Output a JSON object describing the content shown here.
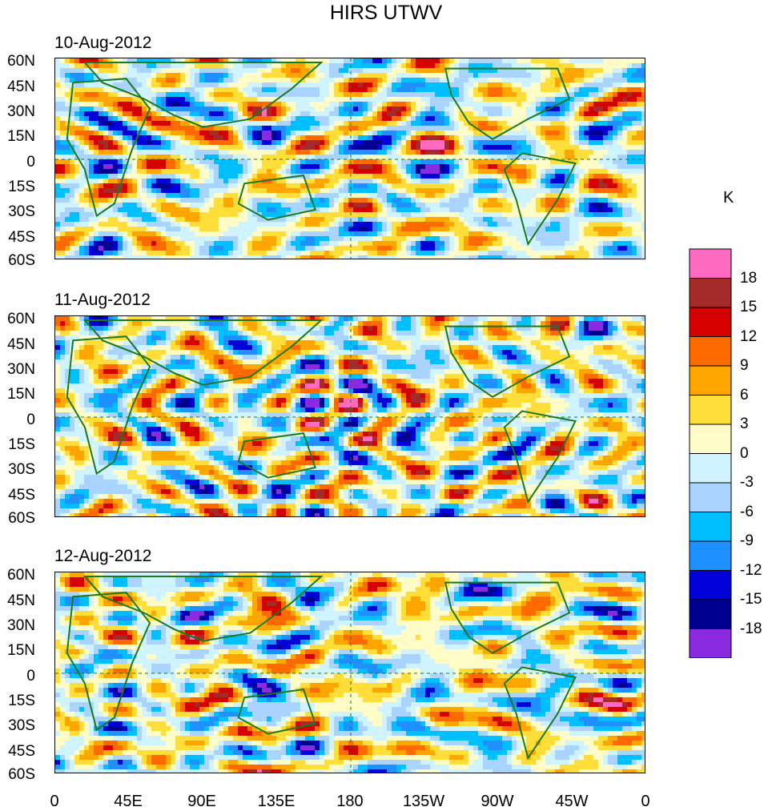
{
  "title": "HIRS UTWV",
  "panels": [
    {
      "date": "10-Aug-2012"
    },
    {
      "date": "11-Aug-2012"
    },
    {
      "date": "12-Aug-2012"
    }
  ],
  "lat_labels": [
    "60N",
    "45N",
    "30N",
    "15N",
    "0",
    "15S",
    "30S",
    "45S",
    "60S"
  ],
  "lon_labels": [
    "0",
    "45E",
    "90E",
    "135E",
    "180",
    "135W",
    "90W",
    "45W",
    "0"
  ],
  "colorbar": {
    "unit": "K",
    "labels": [
      "18",
      "15",
      "12",
      "9",
      "6",
      "3",
      "0",
      "-3",
      "-6",
      "-9",
      "-12",
      "-15",
      "-18"
    ],
    "colors": [
      "#ff69c0",
      "#a52a2a",
      "#d50000",
      "#ff6a00",
      "#ffa500",
      "#ffde3a",
      "#fffcc8",
      "#d0f4ff",
      "#a9d4ff",
      "#00bfff",
      "#1e90ff",
      "#0000d8",
      "#000090",
      "#8a2be2"
    ]
  }
}
